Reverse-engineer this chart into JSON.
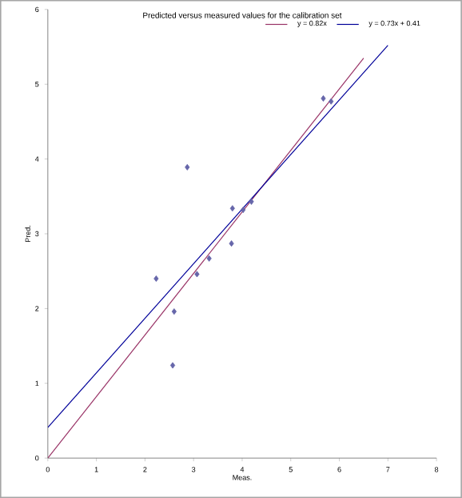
{
  "chart_data": {
    "type": "scatter",
    "title": "Predicted versus measured values for the calibration set",
    "xlabel": "Meas.",
    "ylabel": "Pred.",
    "legend": "top right",
    "grid": false,
    "xlim": [
      0,
      8
    ],
    "ylim": [
      0,
      6
    ],
    "xticks": [
      0,
      1,
      2,
      3,
      4,
      5,
      6,
      7,
      8
    ],
    "yticks": [
      0,
      1,
      2,
      3,
      4,
      5,
      6
    ],
    "series": [
      {
        "marker": "diamond",
        "color": "#6666aa",
        "x": [
          2.23,
          2.6,
          2.57,
          2.87,
          3.07,
          3.32,
          3.8,
          3.78,
          4.02,
          4.19,
          5.67,
          5.83
        ],
        "values": [
          2.4,
          1.96,
          1.24,
          3.89,
          2.46,
          2.67,
          3.34,
          2.87,
          3.32,
          3.43,
          4.81,
          4.77
        ]
      },
      {
        "type": "line",
        "marker": "none",
        "name": "y = 0.82x",
        "color": "#993366",
        "x": [
          0,
          6.5
        ],
        "values": [
          0,
          5.35
        ]
      },
      {
        "type": "line",
        "marker": "none",
        "name": "y = 0.73x + 0.41",
        "color": "#000099",
        "x": [
          0,
          7.0
        ],
        "values": [
          0.41,
          5.52
        ]
      }
    ]
  }
}
